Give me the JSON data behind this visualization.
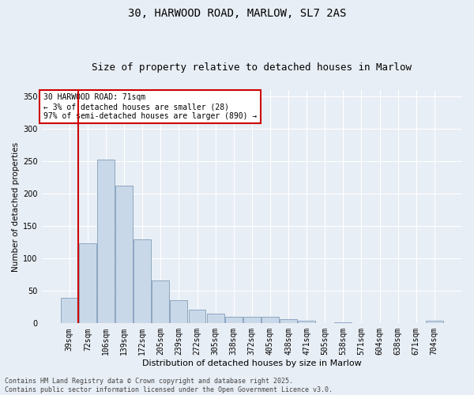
{
  "title": "30, HARWOOD ROAD, MARLOW, SL7 2AS",
  "subtitle": "Size of property relative to detached houses in Marlow",
  "xlabel": "Distribution of detached houses by size in Marlow",
  "ylabel": "Number of detached properties",
  "categories": [
    "39sqm",
    "72sqm",
    "106sqm",
    "139sqm",
    "172sqm",
    "205sqm",
    "239sqm",
    "272sqm",
    "305sqm",
    "338sqm",
    "372sqm",
    "405sqm",
    "438sqm",
    "471sqm",
    "505sqm",
    "538sqm",
    "571sqm",
    "604sqm",
    "638sqm",
    "671sqm",
    "704sqm"
  ],
  "values": [
    40,
    123,
    253,
    213,
    130,
    66,
    36,
    21,
    15,
    10,
    10,
    10,
    7,
    4,
    1,
    2,
    0,
    1,
    0,
    0,
    4
  ],
  "bar_color": "#c8d8e8",
  "bar_edge_color": "#7090b0",
  "vline_color": "#cc0000",
  "annotation_text": "30 HARWOOD ROAD: 71sqm\n← 3% of detached houses are smaller (28)\n97% of semi-detached houses are larger (890) →",
  "annotation_box_color": "#cc0000",
  "ylim": [
    0,
    360
  ],
  "yticks": [
    0,
    50,
    100,
    150,
    200,
    250,
    300,
    350
  ],
  "background_color": "#e8eef5",
  "plot_background": "#e8eef5",
  "footer": "Contains HM Land Registry data © Crown copyright and database right 2025.\nContains public sector information licensed under the Open Government Licence v3.0.",
  "title_fontsize": 10,
  "subtitle_fontsize": 9,
  "xlabel_fontsize": 8,
  "ylabel_fontsize": 7.5,
  "tick_fontsize": 7,
  "annotation_fontsize": 7,
  "footer_fontsize": 6
}
